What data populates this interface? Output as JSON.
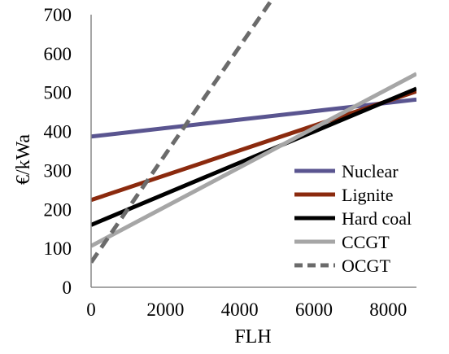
{
  "chart_data": {
    "type": "line",
    "title": "",
    "xlabel": "FLH",
    "ylabel": "€/kWa",
    "xlim": [
      0,
      8760
    ],
    "ylim": [
      0,
      700
    ],
    "xticks": [
      0,
      2000,
      4000,
      6000,
      8000
    ],
    "yticks": [
      0,
      100,
      200,
      300,
      400,
      500,
      600,
      700
    ],
    "grid": false,
    "legend_position": "bottom-right",
    "series": [
      {
        "name": "Nuclear",
        "color": "#5a5590",
        "dash": "solid",
        "x": [
          0,
          8760
        ],
        "y": [
          387,
          482
        ]
      },
      {
        "name": "Lignite",
        "color": "#8b2a0e",
        "dash": "solid",
        "x": [
          0,
          8760
        ],
        "y": [
          224,
          503
        ]
      },
      {
        "name": "Hard coal",
        "color": "#000000",
        "dash": "solid",
        "x": [
          0,
          8760
        ],
        "y": [
          160,
          510
        ]
      },
      {
        "name": "CCGT",
        "color": "#a6a6a6",
        "dash": "solid",
        "x": [
          0,
          8760
        ],
        "y": [
          106,
          548
        ]
      },
      {
        "name": "OCGT",
        "color": "#6b6b6b",
        "dash": "dashed",
        "x": [
          0,
          5150
        ],
        "y": [
          64,
          778
        ]
      }
    ]
  }
}
